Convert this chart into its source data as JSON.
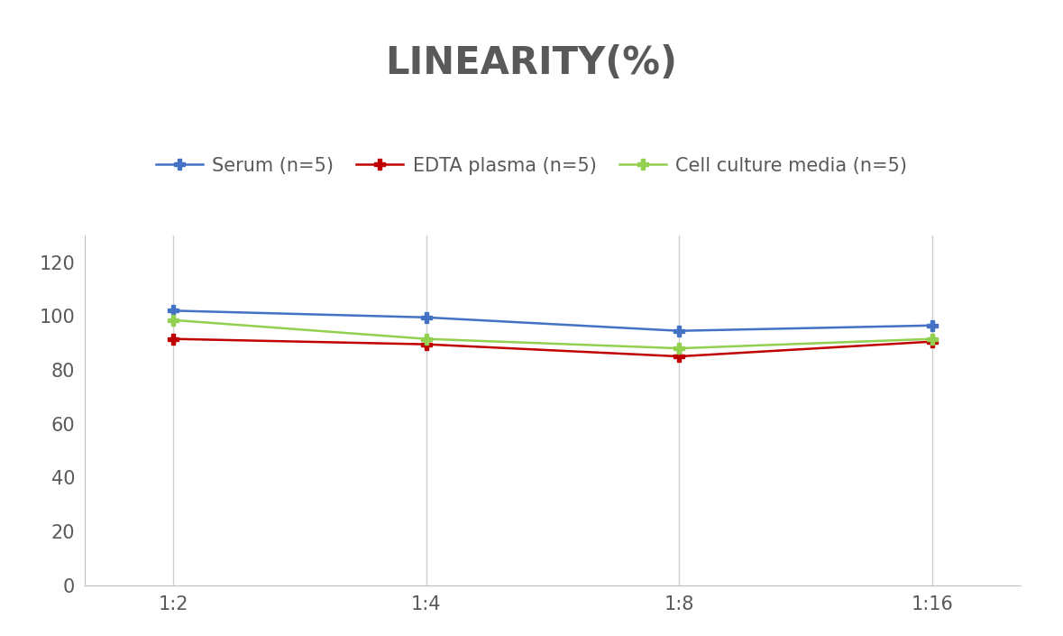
{
  "title": "LINEARITY(%)",
  "title_fontsize": 30,
  "title_fontweight": "bold",
  "title_color": "#595959",
  "x_labels": [
    "1:2",
    "1:4",
    "1:8",
    "1:16"
  ],
  "x_values": [
    0,
    1,
    2,
    3
  ],
  "series": [
    {
      "label": "Serum (n=5)",
      "values": [
        102,
        99.5,
        94.5,
        96.5
      ],
      "color": "#4472C4",
      "marker": "P",
      "markersize": 9,
      "linewidth": 1.8
    },
    {
      "label": "EDTA plasma (n=5)",
      "values": [
        91.5,
        89.5,
        85,
        90.5
      ],
      "color": "#C00000",
      "marker": "P",
      "markersize": 9,
      "linewidth": 1.8
    },
    {
      "label": "Cell culture media (n=5)",
      "values": [
        98.5,
        91.5,
        88,
        91.5
      ],
      "color": "#92D050",
      "marker": "P",
      "markersize": 9,
      "linewidth": 1.8
    }
  ],
  "ylim": [
    0,
    130
  ],
  "yticks": [
    0,
    20,
    40,
    60,
    80,
    100,
    120
  ],
  "grid_color": "#d0d0d0",
  "background_color": "#ffffff",
  "legend_fontsize": 15,
  "tick_fontsize": 15,
  "tick_color": "#595959",
  "spine_color": "#c0c0c0"
}
